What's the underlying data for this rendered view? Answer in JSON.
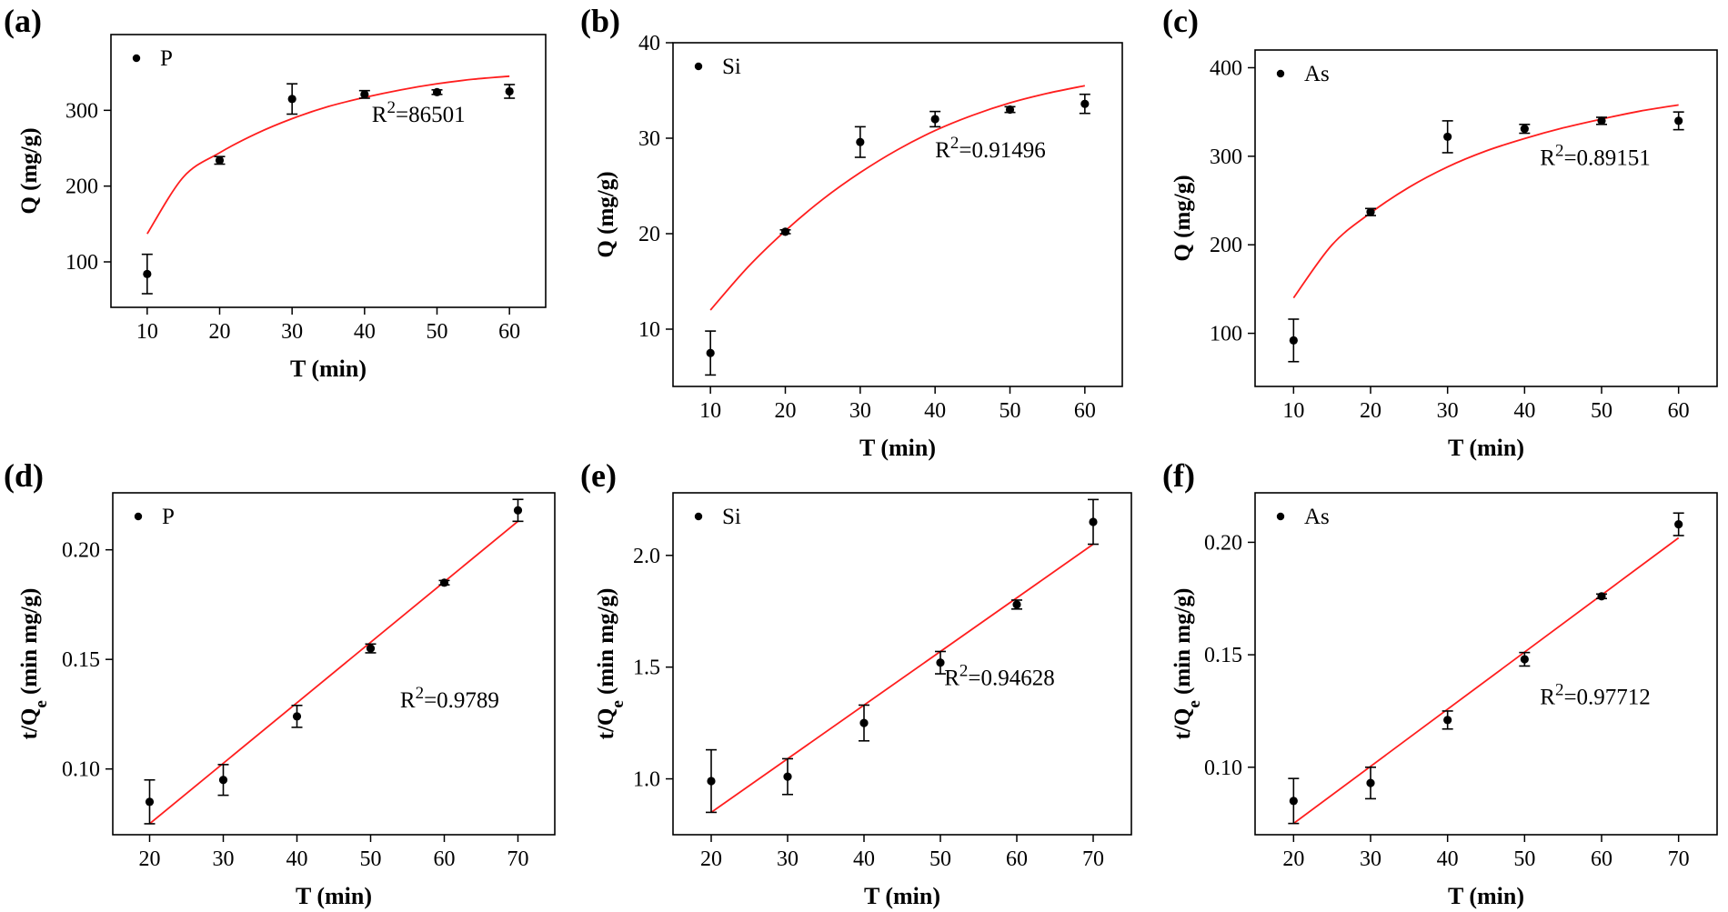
{
  "chart_data": [
    {
      "panel": "(a)",
      "type": "scatter",
      "series_name": "P",
      "fit_type": "exponential",
      "xlabel": "T (min)",
      "ylabel": "Q (mg/g)",
      "xlim": [
        5,
        65
      ],
      "ylim": [
        40,
        400
      ],
      "xticks": [
        10,
        20,
        30,
        40,
        50,
        60
      ],
      "yticks": [
        100,
        200,
        300
      ],
      "x": [
        10,
        20,
        30,
        40,
        50,
        60
      ],
      "y": [
        84,
        234,
        315,
        321,
        324,
        325
      ],
      "err": [
        26,
        5,
        20,
        5,
        3,
        9
      ],
      "fit_x": [
        10,
        15,
        20,
        25,
        30,
        35,
        40,
        45,
        50,
        55,
        60
      ],
      "fit_y": [
        137,
        212,
        244,
        269,
        289,
        305,
        317,
        327,
        335,
        341,
        345
      ],
      "annotation_prefix": "R",
      "annotation_sup": "2",
      "annotation_value": "=86501",
      "annotation_pos": [
        41,
        285
      ]
    },
    {
      "panel": "(b)",
      "type": "scatter",
      "series_name": "Si",
      "fit_type": "exponential",
      "xlabel": "T (min)",
      "ylabel": "Q (mg/g)",
      "xlim": [
        5,
        65
      ],
      "ylim": [
        4,
        40
      ],
      "xticks": [
        10,
        20,
        30,
        40,
        50,
        60
      ],
      "yticks": [
        10,
        20,
        30,
        40
      ],
      "x": [
        10,
        20,
        30,
        40,
        50,
        60
      ],
      "y": [
        7.5,
        20.2,
        29.6,
        32,
        33,
        33.6
      ],
      "err": [
        2.3,
        0.2,
        1.6,
        0.8,
        0.3,
        1.0
      ],
      "fit_x": [
        10,
        15,
        20,
        25,
        30,
        35,
        40,
        45,
        50,
        55,
        60
      ],
      "fit_y": [
        12,
        16.5,
        20.3,
        23.6,
        26.4,
        28.8,
        30.8,
        32.4,
        33.7,
        34.7,
        35.5
      ],
      "annotation_prefix": "R",
      "annotation_sup": "2",
      "annotation_value": "=0.91496",
      "annotation_pos": [
        40,
        28
      ]
    },
    {
      "panel": "(c)",
      "type": "scatter",
      "series_name": "As",
      "fit_type": "exponential",
      "xlabel": "T (min)",
      "ylabel": "Q (mg/g)",
      "xlim": [
        5,
        65
      ],
      "ylim": [
        40,
        420
      ],
      "xticks": [
        10,
        20,
        30,
        40,
        50,
        60
      ],
      "yticks": [
        100,
        200,
        300,
        400
      ],
      "x": [
        10,
        20,
        30,
        40,
        50,
        60
      ],
      "y": [
        92,
        237,
        322,
        331,
        340,
        340
      ],
      "err": [
        24,
        4,
        18,
        5,
        4,
        10
      ],
      "fit_x": [
        10,
        15,
        20,
        25,
        30,
        35,
        40,
        45,
        50,
        55,
        60
      ],
      "fit_y": [
        140,
        200,
        236,
        265,
        288,
        306,
        320,
        332,
        342,
        351,
        358
      ],
      "annotation_prefix": "R",
      "annotation_sup": "2",
      "annotation_value": "=0.89151",
      "annotation_pos": [
        42,
        290
      ]
    },
    {
      "panel": "(d)",
      "type": "scatter",
      "series_name": "P",
      "fit_type": "linear",
      "xlabel": "T (min)",
      "ylabel_main": "t/Q",
      "ylabel_sub": "e",
      "ylabel_tail": " (min mg/g)",
      "xlim": [
        15,
        75
      ],
      "ylim": [
        0.07,
        0.226
      ],
      "xticks": [
        20,
        30,
        40,
        50,
        60,
        70
      ],
      "yticks": [
        0.1,
        0.15,
        0.2
      ],
      "x": [
        20,
        30,
        40,
        50,
        60,
        70
      ],
      "y": [
        0.085,
        0.095,
        0.124,
        0.155,
        0.185,
        0.218
      ],
      "err": [
        0.01,
        0.007,
        0.005,
        0.002,
        0.001,
        0.005
      ],
      "fit_x": [
        20,
        70
      ],
      "fit_y": [
        0.075,
        0.213
      ],
      "annotation_prefix": "R",
      "annotation_sup": "2",
      "annotation_value": "=0.9789",
      "annotation_pos": [
        54,
        0.128
      ]
    },
    {
      "panel": "(e)",
      "type": "scatter",
      "series_name": "Si",
      "fit_type": "linear",
      "xlabel": "T (min)",
      "ylabel_main": "t/Q",
      "ylabel_sub": "e",
      "ylabel_tail": " (min mg/g)",
      "xlim": [
        15,
        75
      ],
      "ylim": [
        0.75,
        2.28
      ],
      "xticks": [
        20,
        30,
        40,
        50,
        60,
        70
      ],
      "yticks": [
        1.0,
        1.5,
        2.0
      ],
      "x": [
        20,
        30,
        40,
        50,
        60,
        70
      ],
      "y": [
        0.99,
        1.01,
        1.25,
        1.52,
        1.78,
        2.15
      ],
      "err": [
        0.14,
        0.08,
        0.08,
        0.05,
        0.02,
        0.1
      ],
      "fit_x": [
        20,
        70
      ],
      "fit_y": [
        0.85,
        2.05
      ],
      "annotation_prefix": "R",
      "annotation_sup": "2",
      "annotation_value": "=0.94628",
      "annotation_pos": [
        50.5,
        1.42
      ]
    },
    {
      "panel": "(f)",
      "type": "scatter",
      "series_name": "As",
      "fit_type": "linear",
      "xlabel": "T (min)",
      "ylabel_main": "t/Q",
      "ylabel_sub": "e",
      "ylabel_tail": " (min mg/g)",
      "xlim": [
        15,
        75
      ],
      "ylim": [
        0.07,
        0.222
      ],
      "xticks": [
        20,
        30,
        40,
        50,
        60,
        70
      ],
      "yticks": [
        0.1,
        0.15,
        0.2
      ],
      "x": [
        20,
        30,
        40,
        50,
        60,
        70
      ],
      "y": [
        0.085,
        0.093,
        0.121,
        0.148,
        0.176,
        0.208
      ],
      "err": [
        0.01,
        0.007,
        0.004,
        0.003,
        0.001,
        0.005
      ],
      "fit_x": [
        20,
        70
      ],
      "fit_y": [
        0.075,
        0.202
      ],
      "annotation_prefix": "R",
      "annotation_sup": "2",
      "annotation_value": "=0.97712",
      "annotation_pos": [
        52,
        0.128
      ]
    }
  ],
  "colors": {
    "fit_line": "#ff1e1e",
    "points": "#000000",
    "axes": "#000000"
  }
}
